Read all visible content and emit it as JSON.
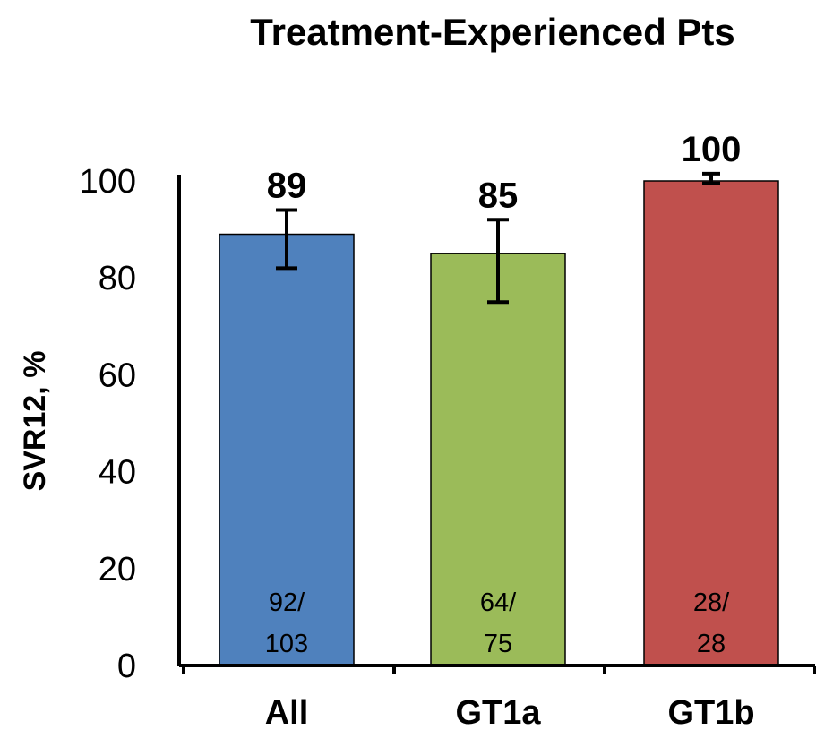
{
  "chart_data": {
    "type": "bar",
    "title": "Treatment-Experienced Pts",
    "xlabel": "",
    "ylabel": "SVR12, %",
    "ylim": [
      0,
      100
    ],
    "yticks": [
      "0",
      "20",
      "40",
      "60",
      "80",
      "100"
    ],
    "categories": [
      "All",
      "GT1a",
      "GT1b"
    ],
    "values": [
      89,
      85,
      100
    ],
    "value_labels": [
      "89",
      "85",
      "100"
    ],
    "error_bars": [
      {
        "low": 82,
        "high": 94
      },
      {
        "low": 75,
        "high": 92
      },
      {
        "low": 99.5,
        "high": 101.5
      }
    ],
    "count_labels": [
      {
        "line1": "92/",
        "line2": "103"
      },
      {
        "line1": "64/",
        "line2": "75"
      },
      {
        "line1": "28/",
        "line2": "28"
      }
    ],
    "colors": [
      "#4f81bd",
      "#9bbb59",
      "#c0504d"
    ],
    "grid": false,
    "legend": "none"
  }
}
